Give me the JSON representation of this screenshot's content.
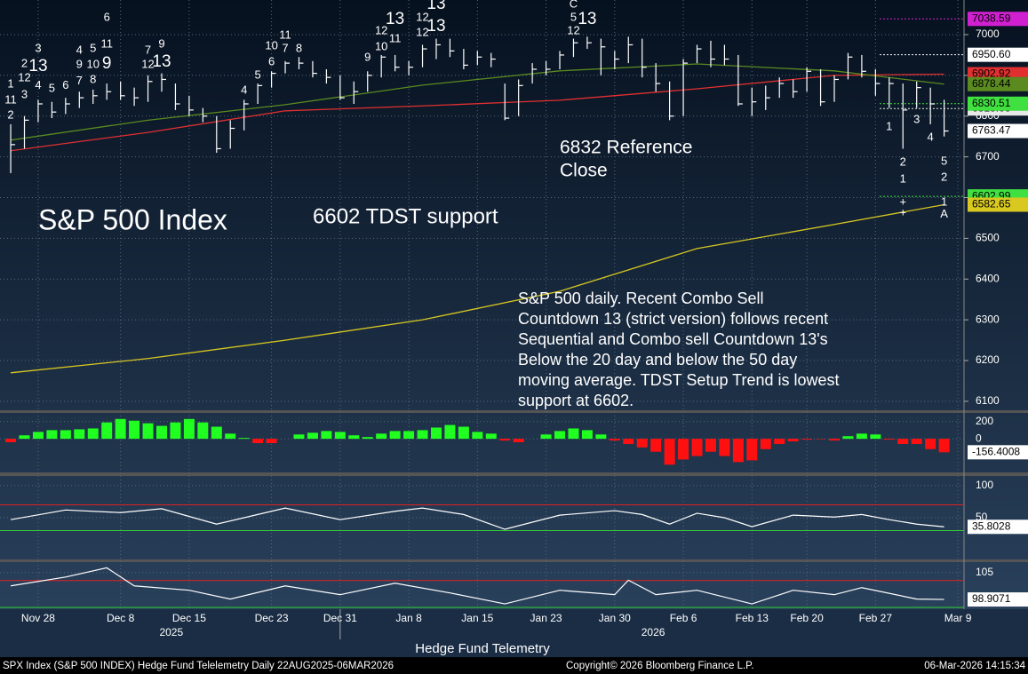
{
  "chart_data": {
    "type": "ohlc",
    "title": "S&P 500 Index",
    "tdst_note": "6602 TDST support",
    "reference_note": [
      "6832 Reference",
      "Close"
    ],
    "commentary": [
      "S&P 500 daily.  Recent Combo Sell",
      "Countdown 13 (strict version) follows recent",
      "Sequential and Combo sell Countdown 13's",
      "Below the 20 day and below the 50 day",
      "moving average. TDST Setup Trend is lowest",
      "support at 6602."
    ],
    "xlim": [
      -0.78,
      69.45
    ],
    "xticks": [
      {
        "value": 2,
        "label": "Nov 28"
      },
      {
        "value": 8,
        "label": "Dec 8"
      },
      {
        "value": 13,
        "label": "Dec 15"
      },
      {
        "value": 19,
        "label": "Dec 23"
      },
      {
        "value": 24,
        "label": "Dec 31"
      },
      {
        "value": 29,
        "label": "Jan 8"
      },
      {
        "value": 34,
        "label": "Jan 15"
      },
      {
        "value": 39,
        "label": "Jan 23"
      },
      {
        "value": 44,
        "label": "Jan 30"
      },
      {
        "value": 49,
        "label": "Feb 6"
      },
      {
        "value": 54,
        "label": "Feb 13"
      },
      {
        "value": 58,
        "label": "Feb 20"
      },
      {
        "value": 63,
        "label": "Feb 27"
      },
      {
        "value": 69,
        "label": "Mar 9"
      }
    ],
    "year_ticks": [
      {
        "value": 11.7,
        "label": "2025"
      },
      {
        "value": 46.8,
        "label": "2026"
      }
    ],
    "year_break": 24,
    "ylim": [
      6078,
      7085
    ],
    "yticks": [
      6100,
      6200,
      6300,
      6400,
      6500,
      6600,
      6700,
      6800,
      6900,
      7000
    ],
    "bar_color": "#ffffff",
    "high": [
      6780,
      6800,
      6840,
      6835,
      6845,
      6860,
      6865,
      6880,
      6885,
      6870,
      6900,
      6905,
      6880,
      6850,
      6820,
      6800,
      6790,
      6840,
      6880,
      6910,
      6935,
      6945,
      6935,
      6915,
      6900,
      6885,
      6910,
      6950,
      6950,
      6935,
      6975,
      6990,
      6990,
      6965,
      6960,
      6955,
      6880,
      6890,
      6930,
      6935,
      6960,
      6990,
      6995,
      6990,
      6960,
      6995,
      6990,
      6930,
      6885,
      6940,
      6975,
      6985,
      6975,
      6950,
      6870,
      6875,
      6895,
      6890,
      6920,
      6915,
      6900,
      6955,
      6950,
      6915,
      6895,
      6880,
      6885,
      6870,
      6840
    ],
    "low": [
      6660,
      6720,
      6785,
      6795,
      6805,
      6820,
      6830,
      6840,
      6840,
      6825,
      6835,
      6860,
      6815,
      6800,
      6785,
      6710,
      6720,
      6765,
      6830,
      6870,
      6905,
      6915,
      6895,
      6880,
      6840,
      6830,
      6860,
      6895,
      6910,
      6900,
      6920,
      6940,
      6945,
      6915,
      6925,
      6920,
      6790,
      6800,
      6880,
      6900,
      6915,
      6945,
      6965,
      6900,
      6915,
      6930,
      6895,
      6860,
      6790,
      6800,
      6930,
      6920,
      6925,
      6825,
      6800,
      6815,
      6845,
      6845,
      6860,
      6825,
      6835,
      6890,
      6895,
      6850,
      6820,
      6720,
      6820,
      6780,
      6750
    ],
    "close": [
      6730,
      6790,
      6830,
      6810,
      6830,
      6845,
      6850,
      6860,
      6850,
      6845,
      6885,
      6890,
      6830,
      6815,
      6800,
      6720,
      6770,
      6830,
      6875,
      6905,
      6930,
      6930,
      6905,
      6895,
      6845,
      6860,
      6900,
      6945,
      6920,
      6920,
      6965,
      6975,
      6960,
      6925,
      6945,
      6940,
      6795,
      6875,
      6915,
      6915,
      6950,
      6980,
      6980,
      6970,
      6940,
      6975,
      6920,
      6880,
      6800,
      6930,
      6965,
      6940,
      6940,
      6830,
      6835,
      6845,
      6880,
      6860,
      6910,
      6835,
      6890,
      6945,
      6910,
      6880,
      6880,
      6815,
      6870,
      6830,
      6763.47
    ],
    "moving_averages": [
      {
        "color": "#d8c820",
        "x": [
          0,
          10,
          20,
          30,
          40,
          50,
          60,
          68
        ],
        "values": [
          6170,
          6205,
          6250,
          6300,
          6370,
          6475,
          6534,
          6582.65
        ]
      },
      {
        "color": "#e03030",
        "x": [
          0,
          10,
          20,
          30,
          40,
          50,
          60,
          68
        ],
        "values": [
          6715,
          6760,
          6813,
          6825,
          6839,
          6867,
          6900,
          6902.92
        ]
      },
      {
        "color": "#5a8a20",
        "x": [
          0,
          10,
          20,
          30,
          40,
          50,
          60,
          68
        ],
        "values": [
          6741,
          6790,
          6828,
          6876,
          6911,
          6928,
          6911,
          6878.44
        ]
      }
    ],
    "levels": [
      {
        "value": 7038.59,
        "color": "#d020d0"
      },
      {
        "value": 6950.6,
        "label": "6950.60",
        "color": "#ffffff"
      },
      {
        "value": 6818.63,
        "color": "#e8e8e8"
      },
      {
        "value": 6830.51,
        "color": "#40e040"
      },
      {
        "value": 6602.99,
        "color": "#40e040"
      }
    ],
    "td_counts": [
      {
        "bar": 0,
        "price": 6878,
        "text": "1",
        "color": "#e040e0"
      },
      {
        "bar": 0,
        "price": 6839,
        "text": "11",
        "color": "#ff3030"
      },
      {
        "bar": 0,
        "price": 6802,
        "text": "2",
        "color": "#40ff40"
      },
      {
        "bar": 1,
        "price": 6928,
        "text": "2",
        "color": "#e040e0"
      },
      {
        "bar": 1,
        "price": 6893,
        "text": "12",
        "color": "#ff3030"
      },
      {
        "bar": 1,
        "price": 6852,
        "text": "3",
        "color": "#40ff40"
      },
      {
        "bar": 2,
        "price": 6965,
        "text": "3",
        "color": "#e040e0"
      },
      {
        "bar": 2,
        "price": 6922,
        "text": "13",
        "color": "#ff3030",
        "emphasis": true
      },
      {
        "bar": 2,
        "price": 6874,
        "text": "4",
        "color": "#40ff40"
      },
      {
        "bar": 3,
        "price": 6867,
        "text": "5",
        "color": "#40ff40"
      },
      {
        "bar": 4,
        "price": 6874,
        "text": "6",
        "color": "#40ff40"
      },
      {
        "bar": 5,
        "price": 6961,
        "text": "4",
        "color": "#e040e0"
      },
      {
        "bar": 5,
        "price": 6926,
        "text": "9",
        "color": "#ff3030"
      },
      {
        "bar": 5,
        "price": 6885,
        "text": "7",
        "color": "#40ff40"
      },
      {
        "bar": 6,
        "price": 6965,
        "text": "5",
        "color": "#e040e0"
      },
      {
        "bar": 6,
        "price": 6926,
        "text": "10",
        "color": "#ff3030"
      },
      {
        "bar": 6,
        "price": 6889,
        "text": "8",
        "color": "#40ff40"
      },
      {
        "bar": 7,
        "price": 7041,
        "text": "6",
        "color": "#e040e0"
      },
      {
        "bar": 7,
        "price": 6976,
        "text": "11",
        "color": "#ff3030"
      },
      {
        "bar": 7,
        "price": 6928,
        "text": "9",
        "color": "#40ff40",
        "emphasis": true
      },
      {
        "bar": 10,
        "price": 6961,
        "text": "7",
        "color": "#e040e0"
      },
      {
        "bar": 10,
        "price": 6926,
        "text": "12",
        "color": "#ff3030"
      },
      {
        "bar": 11,
        "price": 6976,
        "text": "9",
        "color": "#e040e0"
      },
      {
        "bar": 11,
        "price": 6932,
        "text": "13",
        "color": "#ff3030",
        "emphasis": true
      },
      {
        "bar": 17,
        "price": 6863,
        "text": "4",
        "color": "#ff3030"
      },
      {
        "bar": 18,
        "price": 6900,
        "text": "5",
        "color": "#ff3030"
      },
      {
        "bar": 19,
        "price": 6972,
        "text": "10",
        "color": "#e040e0"
      },
      {
        "bar": 19,
        "price": 6932,
        "text": "6",
        "color": "#ff3030"
      },
      {
        "bar": 20,
        "price": 6998,
        "text": "11",
        "color": "#e040e0"
      },
      {
        "bar": 20,
        "price": 6965,
        "text": "7",
        "color": "#ff3030"
      },
      {
        "bar": 21,
        "price": 6965,
        "text": "8",
        "color": "#ff3030"
      },
      {
        "bar": 26,
        "price": 6943,
        "text": "9",
        "color": "#ff3030"
      },
      {
        "bar": 27,
        "price": 7009,
        "text": "12",
        "color": "#e040e0"
      },
      {
        "bar": 27,
        "price": 6969,
        "text": "10",
        "color": "#ff3030"
      },
      {
        "bar": 28,
        "price": 7037,
        "text": "13",
        "color": "#e040e0",
        "emphasis": true
      },
      {
        "bar": 28,
        "price": 6989,
        "text": "11",
        "color": "#ff3030"
      },
      {
        "bar": 30,
        "price": 7041,
        "text": "12",
        "color": "#e040e0"
      },
      {
        "bar": 30,
        "price": 7004,
        "text": "12",
        "color": "#ff3030"
      },
      {
        "bar": 31,
        "price": 7074,
        "text": "13",
        "color": "#e040e0",
        "emphasis": true
      },
      {
        "bar": 31,
        "price": 7020,
        "text": "13",
        "color": "#ff3030",
        "emphasis": true
      },
      {
        "bar": 41,
        "price": 7074,
        "text": "C",
        "color": "#e0d000"
      },
      {
        "bar": 41,
        "price": 7041,
        "text": "5",
        "color": "#40e0ff"
      },
      {
        "bar": 41,
        "price": 7009,
        "text": "12",
        "color": "#e040e0"
      },
      {
        "bar": 42,
        "price": 7037,
        "text": "13",
        "color": "#e040e0",
        "emphasis": true
      },
      {
        "bar": 64,
        "price": 6773,
        "text": "1",
        "color": "#40ff40"
      },
      {
        "bar": 65,
        "price": 6686,
        "text": "2",
        "color": "#40ff40"
      },
      {
        "bar": 65,
        "price": 6645,
        "text": "1",
        "color": "#e040e0"
      },
      {
        "bar": 65,
        "price": 6588,
        "text": "+",
        "color": "#40e0ff"
      },
      {
        "bar": 65,
        "price": 6562,
        "text": "+",
        "color": "#e0d000"
      },
      {
        "bar": 66,
        "price": 6791,
        "text": "3",
        "color": "#40ff40"
      },
      {
        "bar": 67,
        "price": 6747,
        "text": "4",
        "color": "#40ff40"
      },
      {
        "bar": 68,
        "price": 6688,
        "text": "5",
        "color": "#40ff40"
      },
      {
        "bar": 68,
        "price": 6649,
        "text": "2",
        "color": "#e040e0"
      },
      {
        "bar": 68,
        "price": 6588,
        "text": "1",
        "color": "#e0d000"
      },
      {
        "bar": 68,
        "price": 6558,
        "text": "A",
        "color": "#40e0ff"
      }
    ],
    "panels": [
      {
        "type": "histogram",
        "ylim": [
          -390,
          300
        ],
        "yticks": [
          0,
          200
        ],
        "up_color": "#20ff20",
        "down_color": "#ff1010",
        "values": [
          -40,
          40,
          80,
          100,
          100,
          110,
          120,
          190,
          230,
          210,
          180,
          150,
          190,
          230,
          190,
          140,
          60,
          10,
          -50,
          -50,
          0,
          50,
          70,
          90,
          80,
          40,
          20,
          60,
          90,
          90,
          100,
          130,
          160,
          140,
          80,
          60,
          -20,
          -40,
          0,
          50,
          90,
          120,
          100,
          50,
          -20,
          -60,
          -100,
          -150,
          -300,
          -240,
          -200,
          -150,
          -200,
          -270,
          -250,
          -120,
          -60,
          -30,
          -10,
          -5,
          -20,
          30,
          60,
          50,
          -10,
          -60,
          -60,
          -120,
          -156.4008
        ]
      },
      {
        "type": "line",
        "ylim": [
          -15,
          115
        ],
        "yticks": [
          50,
          100
        ],
        "upper": 70,
        "lower": 30,
        "color": "#ffffff",
        "x": [
          0,
          4,
          8,
          11,
          15,
          18,
          20,
          24,
          28,
          30,
          33,
          36,
          40,
          44,
          46,
          48,
          50,
          52,
          54,
          57,
          60,
          62,
          64,
          66,
          68
        ],
        "values": [
          47,
          62,
          58,
          64,
          40,
          55,
          65,
          47,
          60,
          65,
          55,
          32,
          54,
          61,
          55,
          40,
          57,
          50,
          36,
          54,
          51,
          55,
          47,
          40,
          35.8028
        ]
      },
      {
        "type": "line",
        "ylim": [
          96.7,
          107.4
        ],
        "yticks": [
          105
        ],
        "upper": 103.2,
        "lower": 97.1,
        "color": "#ffffff",
        "x": [
          0,
          4,
          7,
          9,
          13,
          16,
          20,
          24,
          28,
          32,
          36,
          40,
          44,
          45,
          47,
          50,
          54,
          57,
          60,
          62,
          66,
          68
        ],
        "values": [
          102,
          104,
          106.1,
          102,
          101,
          99,
          102,
          100,
          102.6,
          100.4,
          97.9,
          101,
          100,
          103.3,
          100,
          101,
          97.9,
          101,
          100,
          101.6,
          99,
          98.9071
        ]
      }
    ]
  },
  "footer": {
    "title": "Hedge Fund Telemetry",
    "source": "SPX Index (S&P 500 INDEX) Hedge Fund Telelemetry Daily 22AUG2025-06MAR2026",
    "copyright": "Copyright© 2026 Bloomberg Finance L.P.",
    "timestamp": "06-Mar-2026 14:15:34"
  }
}
